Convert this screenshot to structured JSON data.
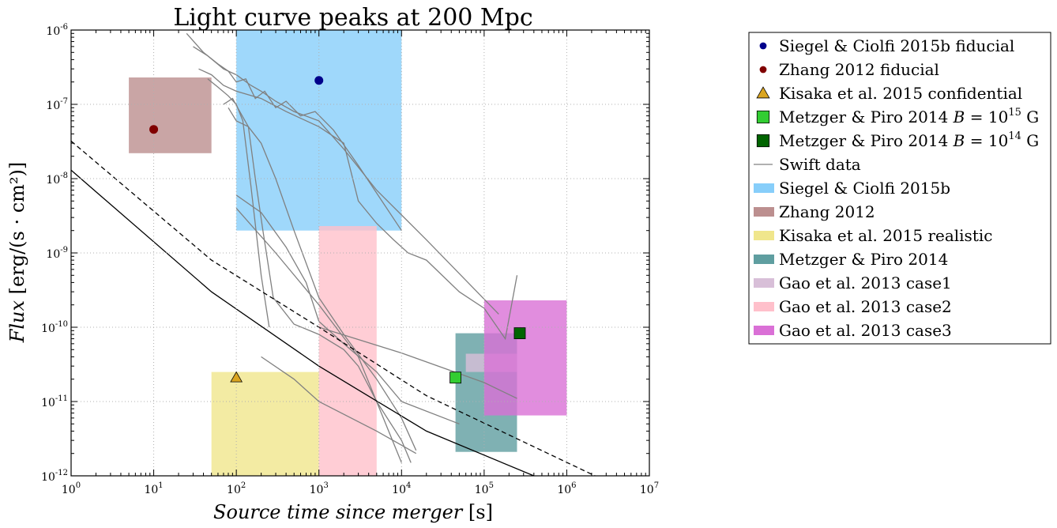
{
  "chart_data": {
    "type": "scatter",
    "title": "Light curve peaks at 200 Mpc",
    "xlabel_italic": "Source time since merger",
    "xlabel_unit": "[s]",
    "ylabel_italic": "Flux",
    "ylabel_unit": "[erg/(s · cm²)]",
    "xscale": "log",
    "yscale": "log",
    "xlim": [
      1,
      10000000
    ],
    "ylim": [
      1e-12,
      1e-06
    ],
    "grid": true,
    "legend_position": "right, outside plot",
    "x_ticks": [
      {
        "value": 1,
        "base": "10",
        "exp": "0"
      },
      {
        "value": 10,
        "base": "10",
        "exp": "1"
      },
      {
        "value": 100,
        "base": "10",
        "exp": "2"
      },
      {
        "value": 1000,
        "base": "10",
        "exp": "3"
      },
      {
        "value": 10000,
        "base": "10",
        "exp": "4"
      },
      {
        "value": 100000,
        "base": "10",
        "exp": "5"
      },
      {
        "value": 1000000,
        "base": "10",
        "exp": "6"
      },
      {
        "value": 10000000,
        "base": "10",
        "exp": "7"
      }
    ],
    "y_ticks": [
      {
        "value": 1e-12,
        "base": "10",
        "exp": "-12"
      },
      {
        "value": 1e-11,
        "base": "10",
        "exp": "-11"
      },
      {
        "value": 1e-10,
        "base": "10",
        "exp": "-10"
      },
      {
        "value": 1e-09,
        "base": "10",
        "exp": "-9"
      },
      {
        "value": 1e-08,
        "base": "10",
        "exp": "-8"
      },
      {
        "value": 1e-07,
        "base": "10",
        "exp": "-7"
      },
      {
        "value": 1e-06,
        "base": "10",
        "exp": "-6"
      }
    ],
    "regions": [
      {
        "name": "Siegel & Ciolfi 2015b",
        "color": "#87cefa",
        "x": [
          100,
          10000
        ],
        "y": [
          2e-09,
          1e-06
        ]
      },
      {
        "name": "Zhang 2012",
        "color": "#bc8f8f",
        "x": [
          5,
          50
        ],
        "y": [
          2.2e-08,
          2.3e-07
        ]
      },
      {
        "name": "Kisaka et al. 2015 realistic",
        "color": "#f0e68c",
        "x": [
          50,
          1000
        ],
        "y": [
          1e-12,
          2.5e-11
        ]
      },
      {
        "name": "Gao et al. 2013 case2",
        "color": "#ffc0cb",
        "x": [
          1000,
          5000
        ],
        "y": [
          1e-12,
          2.3e-09
        ]
      },
      {
        "name": "Metzger & Piro 2014",
        "color": "#5f9ea0",
        "x": [
          45000,
          250000
        ],
        "y": [
          2.1e-12,
          8.3e-11
        ]
      },
      {
        "name": "Gao et al. 2013 case1",
        "color": "#d8bfd8",
        "x": [
          60000,
          250000
        ],
        "y": [
          2.5e-11,
          4.4e-11
        ]
      },
      {
        "name": "Gao et al. 2013 case3",
        "color": "#da70d6",
        "x": [
          100000,
          1000000
        ],
        "y": [
          6.5e-12,
          2.3e-10
        ]
      }
    ],
    "points": [
      {
        "name": "Siegel & Ciolfi 2015b fiducial",
        "marker": "circle",
        "color": "#00008b",
        "x": 1000,
        "y": 2.1e-07
      },
      {
        "name": "Zhang 2012 fiducial",
        "marker": "circle",
        "color": "#800000",
        "x": 10,
        "y": 4.6e-08
      },
      {
        "name": "Kisaka et al. 2015 confidential",
        "marker": "triangle",
        "color": "#daa520",
        "x": 100,
        "y": 2.1e-11
      },
      {
        "name": "Metzger & Piro 2014 B=10^15 G",
        "marker": "square",
        "color": "#32cd32",
        "x": 45000,
        "y": 2.1e-11
      },
      {
        "name": "Metzger & Piro 2014 B=10^14 G",
        "marker": "square",
        "color": "#006400",
        "x": 270000,
        "y": 8.3e-11
      }
    ],
    "reference_lines": [
      {
        "name": "solid sensitivity",
        "style": "solid",
        "x": [
          1,
          50,
          1000,
          20000,
          400000
        ],
        "y": [
          1.3e-08,
          3e-10,
          3e-11,
          4e-12,
          1e-12
        ]
      },
      {
        "name": "dashed sensitivity",
        "style": "dashed",
        "x": [
          1,
          50,
          1000,
          20000,
          2200000
        ],
        "y": [
          3.2e-08,
          8e-10,
          1e-10,
          1.2e-11,
          1e-12
        ]
      }
    ],
    "swift_lightcurves": [
      {
        "x": [
          25,
          40,
          60,
          80,
          100,
          130,
          170,
          220,
          300,
          400,
          600,
          900,
          1500,
          3000,
          10000
        ],
        "y": [
          9e-07,
          5e-07,
          3.5e-07,
          2.8e-07,
          2e-07,
          2.2e-07,
          1.2e-07,
          1.5e-07,
          9e-08,
          1.1e-07,
          7e-08,
          8e-08,
          4.5e-08,
          1.5e-08,
          2e-09
        ]
      },
      {
        "x": [
          30,
          45,
          70,
          100,
          150,
          200,
          300,
          500,
          1000,
          2000,
          5000,
          20000,
          150000
        ],
        "y": [
          6e-07,
          4.5e-07,
          3e-07,
          2.5e-07,
          1.8e-07,
          1.5e-07,
          1.1e-07,
          8e-08,
          6e-08,
          2.5e-08,
          7e-09,
          1.5e-09,
          1.5e-10
        ]
      },
      {
        "x": [
          35,
          50,
          70,
          100,
          200,
          400,
          1000,
          2000,
          3000,
          5000,
          8000,
          12000,
          20000,
          50000,
          100000,
          180000,
          250000
        ],
        "y": [
          3e-07,
          2.5e-07,
          1.8e-07,
          1.5e-07,
          1.2e-07,
          8e-08,
          5e-08,
          3e-08,
          5e-09,
          2.5e-09,
          1.5e-09,
          1e-09,
          8e-10,
          3e-10,
          1.8e-10,
          7e-11,
          5e-10
        ]
      },
      {
        "x": [
          45,
          60,
          80,
          100,
          120,
          150,
          200,
          250
        ],
        "y": [
          2.2e-07,
          1.7e-07,
          1.3e-07,
          1e-07,
          6e-08,
          8e-09,
          5e-10,
          1e-10
        ]
      },
      {
        "x": [
          70,
          90,
          110,
          140,
          170,
          210,
          280,
          500,
          1000,
          2000,
          3000,
          5000,
          10000,
          13000
        ],
        "y": [
          1e-07,
          1.2e-07,
          8e-08,
          5e-08,
          1e-08,
          2e-09,
          2.5e-10,
          1.1e-10,
          8e-11,
          5e-11,
          3e-11,
          1e-11,
          3e-12,
          1.5e-12
        ]
      },
      {
        "x": [
          80,
          100,
          140,
          200,
          300,
          500,
          1000,
          2000,
          5000,
          10000,
          15000
        ],
        "y": [
          9e-08,
          6e-08,
          5e-08,
          3e-08,
          1e-08,
          2e-09,
          2.5e-10,
          8e-11,
          2e-11,
          6e-12,
          2.2e-12
        ]
      },
      {
        "x": [
          100,
          200,
          400,
          700,
          1000,
          2000,
          5000,
          10000,
          50000
        ],
        "y": [
          6e-09,
          3.5e-09,
          1.2e-09,
          4e-10,
          1.2e-10,
          6e-11,
          2.5e-11,
          1e-11,
          5e-12
        ]
      },
      {
        "x": [
          1000,
          10000,
          100000,
          250000
        ],
        "y": [
          1e-10,
          4.5e-11,
          1.8e-11,
          1.1e-11
        ]
      },
      {
        "x": [
          100,
          300,
          1000,
          3000,
          10000
        ],
        "y": [
          4e-09,
          1e-09,
          2e-10,
          4e-11,
          1.5e-12
        ]
      },
      {
        "x": [
          200,
          500,
          1000,
          5000,
          15000
        ],
        "y": [
          4e-11,
          2e-11,
          1e-11,
          4e-12,
          2e-12
        ]
      }
    ],
    "legend": [
      {
        "type": "point",
        "marker": "circle",
        "color": "#00008b",
        "label": "Siegel & Ciolfi 2015b fiducial"
      },
      {
        "type": "point",
        "marker": "circle",
        "color": "#800000",
        "label": "Zhang 2012 fiducial"
      },
      {
        "type": "point",
        "marker": "triangle",
        "color": "#daa520",
        "label": "Kisaka et al. 2015 confidential"
      },
      {
        "type": "point",
        "marker": "square",
        "color": "#32cd32",
        "label": "Metzger & Piro 2014",
        "math_var": "B",
        "math_rest": " = 10",
        "exp": "15",
        "unit": " G"
      },
      {
        "type": "point",
        "marker": "square",
        "color": "#006400",
        "label": "Metzger & Piro 2014",
        "math_var": "B",
        "math_rest": " = 10",
        "exp": "14",
        "unit": " G"
      },
      {
        "type": "line",
        "color": "#808080",
        "label": "Swift data"
      },
      {
        "type": "patch",
        "color": "#87cefa",
        "label": "Siegel & Ciolfi 2015b"
      },
      {
        "type": "patch",
        "color": "#bc8f8f",
        "label": "Zhang 2012"
      },
      {
        "type": "patch",
        "color": "#f0e68c",
        "label": "Kisaka et al. 2015 realistic"
      },
      {
        "type": "patch",
        "color": "#5f9ea0",
        "label": "Metzger & Piro 2014"
      },
      {
        "type": "patch",
        "color": "#d8bfd8",
        "label": "Gao et al. 2013 case1"
      },
      {
        "type": "patch",
        "color": "#ffc0cb",
        "label": "Gao et al. 2013 case2"
      },
      {
        "type": "patch",
        "color": "#da70d6",
        "label": "Gao et al. 2013 case3"
      }
    ]
  }
}
